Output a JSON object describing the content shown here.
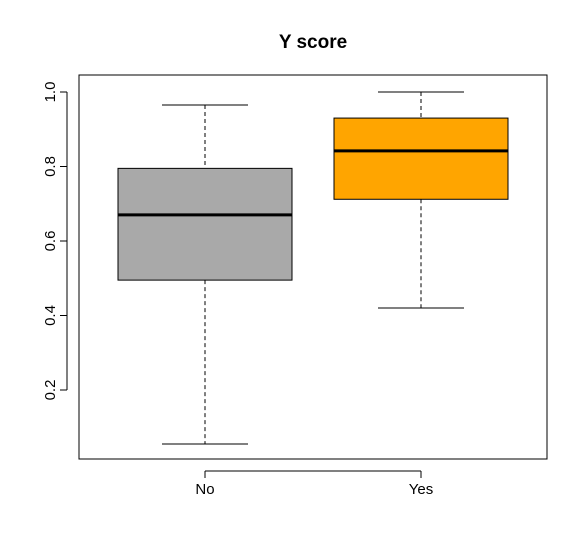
{
  "chart_data": {
    "type": "boxplot",
    "title": "Y score",
    "xlabel": "",
    "ylabel": "",
    "ylim": [
      0.0,
      1.05
    ],
    "yticks": [
      0.2,
      0.4,
      0.6,
      0.8,
      1.0
    ],
    "ytick_labels": [
      "0.2",
      "0.4",
      "0.6",
      "0.8",
      "1.0"
    ],
    "categories": [
      "No",
      "Yes"
    ],
    "boxes": [
      {
        "category": "No",
        "whisker_low": 0.055,
        "q1": 0.495,
        "median": 0.67,
        "q3": 0.795,
        "whisker_high": 0.965,
        "color": "#A9A9A9"
      },
      {
        "category": "Yes",
        "whisker_low": 0.42,
        "q1": 0.712,
        "median": 0.842,
        "q3": 0.93,
        "whisker_high": 1.0,
        "color": "#FFA500"
      }
    ],
    "grid": false,
    "legend": "none"
  }
}
